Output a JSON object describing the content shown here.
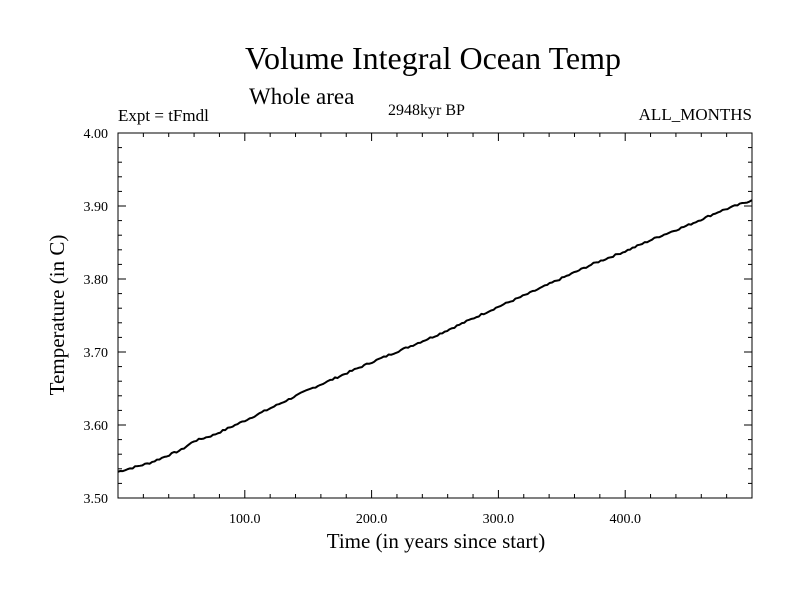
{
  "header": {
    "title": "Volume Integral Ocean Temp",
    "subtitle": "Whole area",
    "experiment": "Expt = tFmdl",
    "period": "2948kyr BP",
    "months": "ALL_MONTHS"
  },
  "chart_data": {
    "type": "line",
    "title": "Volume Integral Ocean Temp",
    "subtitle": "Whole area",
    "xlabel": "Time (in years since start)",
    "ylabel": "Temperature (in C)",
    "xlim": [
      0,
      500
    ],
    "ylim": [
      3.5,
      4.0
    ],
    "xticks": [
      100,
      200,
      300,
      400
    ],
    "xtick_labels": [
      "100.0",
      "200.0",
      "300.0",
      "400.0"
    ],
    "yticks": [
      3.5,
      3.6,
      3.7,
      3.8,
      3.9,
      4.0
    ],
    "ytick_labels": [
      "3.50",
      "3.60",
      "3.70",
      "3.80",
      "3.90",
      "4.00"
    ],
    "grid": false,
    "series": [
      {
        "name": "Volume Integral Ocean Temp",
        "x": [
          0,
          25,
          50,
          60,
          75,
          100,
          125,
          150,
          175,
          200,
          225,
          250,
          275,
          300,
          325,
          350,
          375,
          400,
          425,
          450,
          475,
          500
        ],
        "values": [
          3.536,
          3.548,
          3.566,
          3.578,
          3.586,
          3.606,
          3.627,
          3.648,
          3.667,
          3.686,
          3.704,
          3.722,
          3.742,
          3.762,
          3.781,
          3.801,
          3.821,
          3.838,
          3.857,
          3.874,
          3.893,
          3.908
        ]
      }
    ]
  }
}
